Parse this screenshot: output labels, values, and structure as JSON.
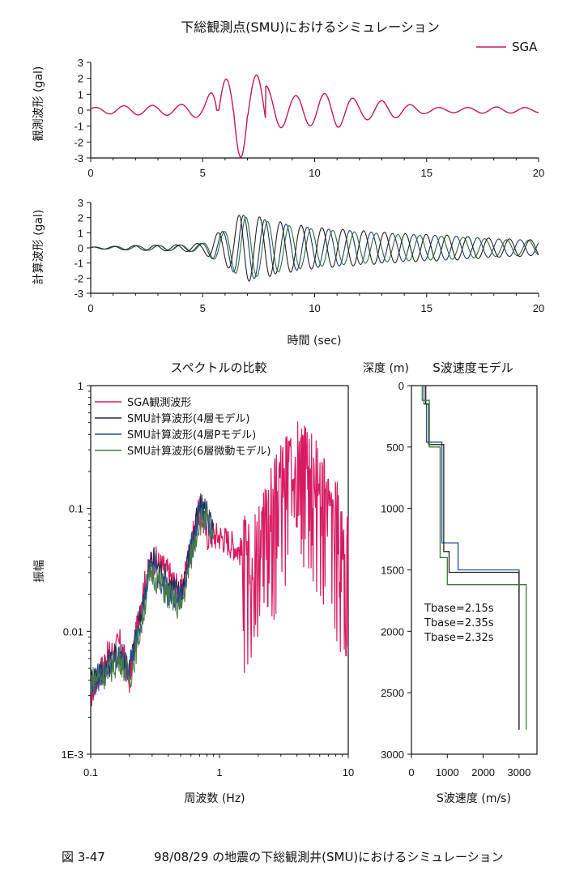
{
  "chart_data": [
    {
      "id": "obs",
      "type": "line",
      "title": "下総観測点(SMU)におけるシミュレーション",
      "ylabel": "観測波形 (gal)",
      "xlabel": "",
      "xlim": [
        0,
        20
      ],
      "ylim": [
        -3,
        3
      ],
      "xticks": [
        0,
        5,
        10,
        15,
        20
      ],
      "yticks": [
        3,
        2,
        1,
        0,
        -1,
        -2,
        -3
      ],
      "legend": "top-right",
      "series": [
        {
          "name": "SGA",
          "color": "#c2185b",
          "envelope": [
            [
              0,
              0.15
            ],
            [
              1,
              0.25
            ],
            [
              2,
              0.3
            ],
            [
              3,
              0.3
            ],
            [
              4,
              0.35
            ],
            [
              5,
              0.5
            ],
            [
              5.6,
              1.5
            ],
            [
              6.1,
              2.0
            ],
            [
              6.7,
              2.9
            ],
            [
              7.4,
              2.2
            ],
            [
              8,
              1.3
            ],
            [
              9,
              0.9
            ],
            [
              10,
              1.0
            ],
            [
              11,
              1.1
            ],
            [
              12,
              0.6
            ],
            [
              13,
              0.6
            ],
            [
              14,
              0.4
            ],
            [
              15,
              0.2
            ],
            [
              16,
              0.15
            ],
            [
              18,
              0.2
            ],
            [
              20,
              0.15
            ]
          ],
          "peaks": [
            [
              6.05,
              1.95
            ],
            [
              6.7,
              -3.0
            ],
            [
              7.4,
              2.2
            ],
            [
              8.0,
              -1.3
            ],
            [
              8.6,
              1.4
            ],
            [
              9.2,
              -0.9
            ],
            [
              9.9,
              0.9
            ],
            [
              10.5,
              -1.0
            ],
            [
              11.2,
              1.1
            ],
            [
              11.7,
              -1.1
            ]
          ]
        }
      ]
    },
    {
      "id": "calc",
      "type": "line",
      "title": "",
      "ylabel": "計算波形 (gal)",
      "xlabel": "時間 (sec)",
      "xlim": [
        0,
        20
      ],
      "ylim": [
        -3,
        3
      ],
      "xticks": [
        0,
        5,
        10,
        15,
        20
      ],
      "yticks": [
        3,
        2,
        1,
        0,
        -1,
        -2,
        -3
      ],
      "series": [
        {
          "color": "#1a3a6b",
          "period": 0.95,
          "phase": 0.0,
          "amp_scale": 1.0
        },
        {
          "color": "#2e6b3a",
          "period": 0.97,
          "phase": 0.25,
          "amp_scale": 0.95
        },
        {
          "color": "#222222",
          "period": 0.93,
          "phase": 0.5,
          "amp_scale": 1.05
        }
      ],
      "envelope": [
        [
          0,
          0.05
        ],
        [
          2,
          0.15
        ],
        [
          4,
          0.2
        ],
        [
          5,
          0.3
        ],
        [
          5.6,
          0.9
        ],
        [
          6.2,
          1.3
        ],
        [
          6.7,
          2.2
        ],
        [
          7.4,
          2.0
        ],
        [
          8.6,
          1.6
        ],
        [
          10,
          1.3
        ],
        [
          12,
          1.1
        ],
        [
          14,
          0.9
        ],
        [
          16,
          0.8
        ],
        [
          18,
          0.6
        ],
        [
          20,
          0.5
        ]
      ]
    },
    {
      "id": "spectrum",
      "type": "line",
      "title": "スペクトルの比較",
      "xlabel": "周波数 (Hz)",
      "ylabel": "振幅",
      "xscale": "log",
      "yscale": "log",
      "xlim": [
        0.1,
        10
      ],
      "ylim": [
        0.001,
        1
      ],
      "xtick_labels": [
        "0.1",
        "1",
        "10"
      ],
      "ytick_labels": [
        "1",
        "0.1",
        "0.01",
        "1E-3"
      ],
      "legend": "top-left",
      "series": [
        {
          "name": "SGA観測波形",
          "color": "#d81b60",
          "trend": [
            [
              0.1,
              0.003
            ],
            [
              0.13,
              0.006
            ],
            [
              0.17,
              0.008
            ],
            [
              0.2,
              0.004
            ],
            [
              0.25,
              0.02
            ],
            [
              0.28,
              0.03
            ],
            [
              0.3,
              0.04
            ],
            [
              0.4,
              0.03
            ],
            [
              0.5,
              0.02
            ],
            [
              0.6,
              0.05
            ],
            [
              0.7,
              0.1
            ],
            [
              0.8,
              0.06
            ],
            [
              1,
              0.06
            ],
            [
              1.3,
              0.05
            ],
            [
              1.6,
              0.04
            ],
            [
              2,
              0.06
            ],
            [
              2.5,
              0.1
            ],
            [
              3,
              0.15
            ],
            [
              3.5,
              0.2
            ],
            [
              4,
              0.25
            ],
            [
              5,
              0.2
            ],
            [
              6,
              0.15
            ],
            [
              7,
              0.1
            ],
            [
              8,
              0.08
            ],
            [
              10,
              0.05
            ]
          ]
        },
        {
          "name": "SMU計算波形(4層モデル)",
          "color": "#1b2a4a",
          "trend": [
            [
              0.1,
              0.004
            ],
            [
              0.13,
              0.005
            ],
            [
              0.17,
              0.007
            ],
            [
              0.2,
              0.005
            ],
            [
              0.25,
              0.015
            ],
            [
              0.28,
              0.03
            ],
            [
              0.3,
              0.04
            ],
            [
              0.4,
              0.025
            ],
            [
              0.5,
              0.02
            ],
            [
              0.6,
              0.05
            ],
            [
              0.7,
              0.1
            ],
            [
              0.8,
              0.1
            ],
            [
              0.9,
              0.06
            ]
          ]
        },
        {
          "name": "SMU計算波形(4層Pモデル)",
          "color": "#1f4e8c",
          "trend": [
            [
              0.1,
              0.0035
            ],
            [
              0.13,
              0.005
            ],
            [
              0.17,
              0.006
            ],
            [
              0.2,
              0.005
            ],
            [
              0.25,
              0.014
            ],
            [
              0.28,
              0.028
            ],
            [
              0.3,
              0.035
            ],
            [
              0.4,
              0.02
            ],
            [
              0.5,
              0.018
            ],
            [
              0.6,
              0.045
            ],
            [
              0.7,
              0.09
            ],
            [
              0.8,
              0.09
            ],
            [
              0.9,
              0.05
            ]
          ]
        },
        {
          "name": "SMU計算波形(6層微動モデル)",
          "color": "#4a7a4a",
          "trend": [
            [
              0.1,
              0.004
            ],
            [
              0.13,
              0.0045
            ],
            [
              0.17,
              0.006
            ],
            [
              0.2,
              0.004
            ],
            [
              0.25,
              0.012
            ],
            [
              0.28,
              0.025
            ],
            [
              0.3,
              0.03
            ],
            [
              0.4,
              0.02
            ],
            [
              0.5,
              0.015
            ],
            [
              0.6,
              0.04
            ],
            [
              0.7,
              0.08
            ],
            [
              0.8,
              0.08
            ],
            [
              0.9,
              0.05
            ]
          ]
        }
      ]
    },
    {
      "id": "velocity",
      "type": "line",
      "title": "S波速度モデル",
      "xlabel": "S波速度 (m/s)",
      "ylabel": "深度 (m)",
      "xlim": [
        0,
        3500
      ],
      "ylim": [
        3000,
        0
      ],
      "xticks": [
        0,
        1000,
        2000,
        3000
      ],
      "yticks": [
        0,
        500,
        1000,
        1500,
        2000,
        2500,
        3000
      ],
      "annotations": [
        {
          "text": "Tbase=2.15s",
          "color": "#111111"
        },
        {
          "text": "Tbase=2.35s",
          "color": "#1f4e8c"
        },
        {
          "text": "Tbase=2.32s",
          "color": "#3a7a3a"
        }
      ],
      "series": [
        {
          "color": "#1f4e8c",
          "profile": [
            [
              350,
              0
            ],
            [
              350,
              150
            ],
            [
              420,
              150
            ],
            [
              420,
              460
            ],
            [
              850,
              460
            ],
            [
              850,
              1280
            ],
            [
              1300,
              1280
            ],
            [
              1300,
              1500
            ],
            [
              3000,
              1500
            ],
            [
              3000,
              2800
            ]
          ]
        },
        {
          "color": "#222222",
          "profile": [
            [
              400,
              0
            ],
            [
              400,
              150
            ],
            [
              480,
              150
            ],
            [
              480,
              480
            ],
            [
              900,
              480
            ],
            [
              900,
              1350
            ],
            [
              1050,
              1350
            ],
            [
              1050,
              1520
            ],
            [
              3000,
              1520
            ],
            [
              3000,
              2800
            ]
          ]
        },
        {
          "color": "#3a7a3a",
          "profile": [
            [
              300,
              0
            ],
            [
              300,
              120
            ],
            [
              500,
              120
            ],
            [
              500,
              500
            ],
            [
              800,
              500
            ],
            [
              800,
              1400
            ],
            [
              1000,
              1400
            ],
            [
              1000,
              1620
            ],
            [
              3200,
              1620
            ],
            [
              3200,
              2800
            ]
          ]
        }
      ]
    }
  ],
  "caption": {
    "figure_no": "図 3-47",
    "text": "98/08/29 の地震の下総観測井(SMU)におけるシミュレーション"
  }
}
